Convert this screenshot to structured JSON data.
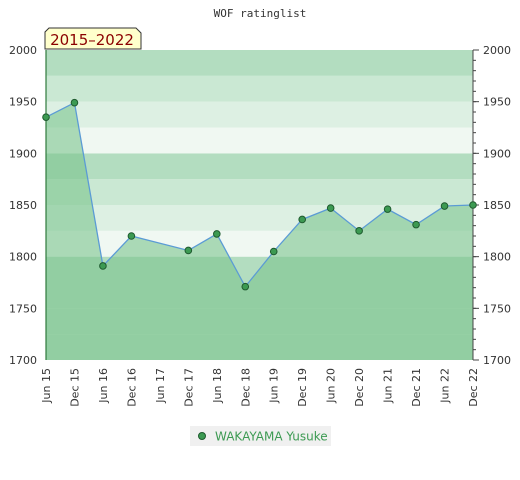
{
  "chart_data": {
    "type": "area",
    "title": "WOF ratinglist",
    "period_label": "2015–2022",
    "categories": [
      "Jun 15",
      "Dec 15",
      "Jun 16",
      "Dec 16",
      "Jun 17",
      "Dec 17",
      "Jun 18",
      "Dec 18",
      "Jun 19",
      "Dec 19",
      "Jun 20",
      "Dec 20",
      "Jun 21",
      "Dec 21",
      "Jun 22",
      "Dec 22"
    ],
    "series": [
      {
        "name": "WAKAYAMA Yusuke",
        "points": [
          {
            "x": "Jun 15",
            "y": 1935
          },
          {
            "x": "Dec 15",
            "y": 1949
          },
          {
            "x": "Jun 16",
            "y": 1791
          },
          {
            "x": "Dec 16",
            "y": 1820
          },
          {
            "x": "Dec 17",
            "y": 1806
          },
          {
            "x": "Jun 18",
            "y": 1822
          },
          {
            "x": "Dec 18",
            "y": 1771
          },
          {
            "x": "Jun 19",
            "y": 1805
          },
          {
            "x": "Dec 19",
            "y": 1836
          },
          {
            "x": "Jun 20",
            "y": 1847
          },
          {
            "x": "Dec 20",
            "y": 1825
          },
          {
            "x": "Jun 21",
            "y": 1846
          },
          {
            "x": "Dec 21",
            "y": 1831
          },
          {
            "x": "Jun 22",
            "y": 1849
          },
          {
            "x": "Dec 22",
            "y": 1850
          }
        ]
      }
    ],
    "ylim": [
      1700,
      2000
    ],
    "yticks": [
      1700,
      1750,
      1800,
      1850,
      1900,
      1950,
      2000
    ],
    "y_axis_both_sides": true,
    "legend_position": "bottom",
    "colors": {
      "line": "#5b9bd5",
      "fill": "#7cc48d",
      "marker": "#3c9a52",
      "legend_text": "#3c9a52",
      "band_dark": "#b3ddc0",
      "band_mid": "#cae8d3",
      "band_light": "#ddf0e3",
      "band_lightest": "#f0f8f2",
      "badge_bg": "#ffffcc",
      "badge_text": "#8b0000"
    }
  }
}
